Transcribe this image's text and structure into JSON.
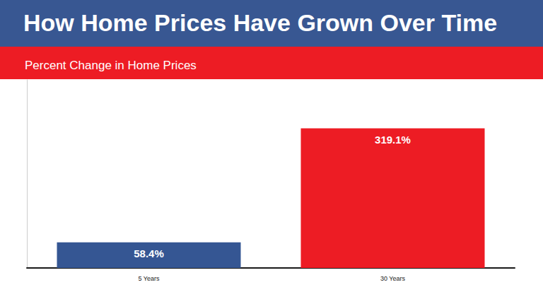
{
  "chart_data": {
    "type": "bar",
    "title": "How Home Prices Have Grown Over Time",
    "subtitle": "Percent Change in Home Prices",
    "categories": [
      "5 Years",
      "30 Years"
    ],
    "values": [
      58.4,
      319.1
    ],
    "value_labels": [
      "58.4%",
      "319.1%"
    ],
    "colors": [
      "#355693",
      "#ed1c24"
    ],
    "ylim": [
      0,
      430
    ],
    "grid": false,
    "data_labels": true,
    "tick_labels": "x"
  }
}
